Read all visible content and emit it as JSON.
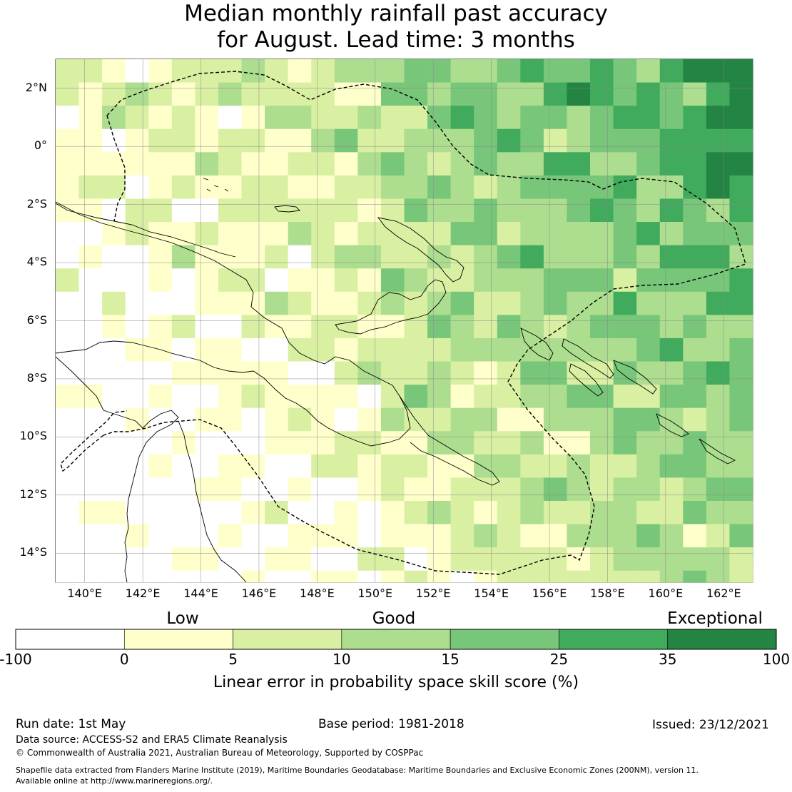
{
  "title_line1": "Median monthly rainfall past accuracy",
  "title_line2": "for August. Lead time: 3 months",
  "map": {
    "lon_range": [
      139,
      163
    ],
    "lat_range": [
      -15,
      3
    ],
    "lon_ticks": [
      "140°E",
      "142°E",
      "144°E",
      "146°E",
      "148°E",
      "150°E",
      "152°E",
      "154°E",
      "156°E",
      "158°E",
      "160°E",
      "162°E"
    ],
    "lat_ticks": [
      "2°N",
      "0°",
      "2°S",
      "4°S",
      "6°S",
      "8°S",
      "10°S",
      "12°S",
      "14°S"
    ]
  },
  "colorbar": {
    "categories": [
      "Low",
      "Good",
      "Exceptional"
    ],
    "ticks": [
      "-100",
      "0",
      "5",
      "10",
      "15",
      "25",
      "35",
      "100"
    ],
    "colors": [
      "#ffffff",
      "#ffffcc",
      "#d9f0a3",
      "#addd8e",
      "#78c679",
      "#41ab5d",
      "#238443"
    ],
    "label": "Linear error in probability space skill score (%)"
  },
  "footer": {
    "run_date": "Run date: 1st May",
    "base_period": "Base period: 1981-2018",
    "issued": "Issued: 23/12/2021",
    "data_source": "Data source: ACCESS-S2 and ERA5 Climate Reanalysis",
    "copyright": "© Commonwealth of Australia 2021, Australian Bureau of Meteorology, Supported by COSPPac",
    "shapefile_1": "Shapefile data extracted from Flanders Marine Institute (2019), Maritime Boundaries Geodatabase: Maritime Boundaries and Exclusive Economic Zones (200NM), version 11.",
    "shapefile_2": "Available online at http://www.marineregions.org/."
  }
}
